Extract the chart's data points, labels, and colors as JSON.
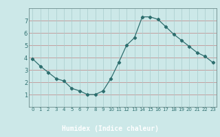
{
  "x": [
    0,
    1,
    2,
    3,
    4,
    5,
    6,
    7,
    8,
    9,
    10,
    11,
    12,
    13,
    14,
    15,
    16,
    17,
    18,
    19,
    20,
    21,
    22,
    23
  ],
  "y": [
    3.9,
    3.3,
    2.8,
    2.3,
    2.1,
    1.5,
    1.3,
    1.0,
    1.0,
    1.3,
    2.3,
    3.6,
    5.0,
    5.6,
    7.3,
    7.3,
    7.1,
    6.5,
    5.9,
    5.4,
    4.9,
    4.4,
    4.1,
    3.6
  ],
  "xlabel": "Humidex (Indice chaleur)",
  "xlim": [
    -0.5,
    23.5
  ],
  "ylim": [
    0,
    8
  ],
  "yticks": [
    1,
    2,
    3,
    4,
    5,
    6,
    7
  ],
  "xticks": [
    0,
    1,
    2,
    3,
    4,
    5,
    6,
    7,
    8,
    9,
    10,
    11,
    12,
    13,
    14,
    15,
    16,
    17,
    18,
    19,
    20,
    21,
    22,
    23
  ],
  "line_color": "#2d6e6e",
  "marker": "D",
  "marker_size": 2.2,
  "bg_color": "#cce8e8",
  "grid_color_h": "#c08080",
  "grid_color_v": "#a8cccc",
  "bottom_bar_color": "#4a5a6a",
  "xlabel_color": "#2d6e6e",
  "tick_color": "#2d6e6e"
}
